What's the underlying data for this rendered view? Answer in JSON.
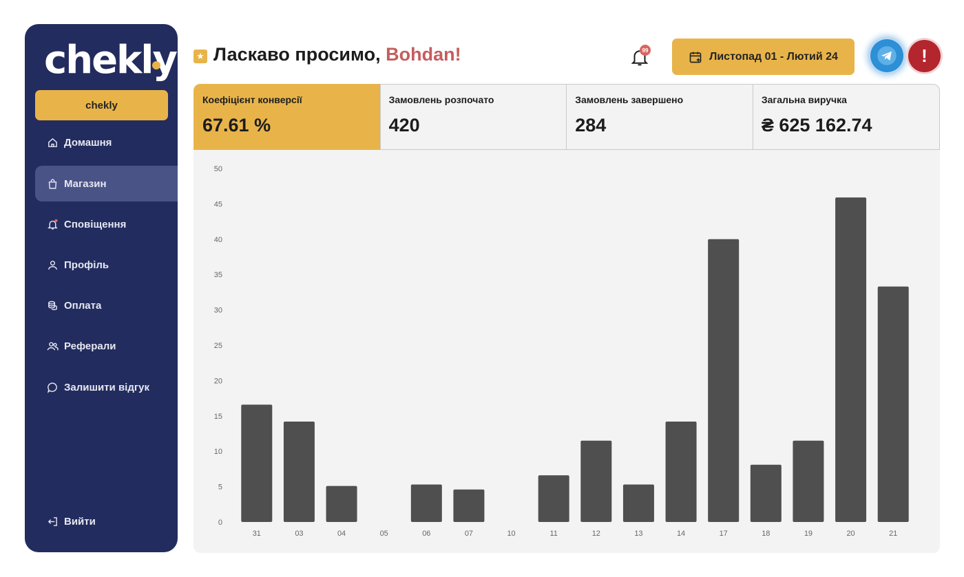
{
  "brand": {
    "logo": "chekly",
    "button_label": "chekly"
  },
  "sidebar": {
    "items": [
      {
        "label": "Домашня",
        "icon": "home-icon",
        "active": false
      },
      {
        "label": "Магазин",
        "icon": "shopping-bag-icon",
        "active": true
      },
      {
        "label": "Сповіщення",
        "icon": "bell-icon",
        "active": false
      },
      {
        "label": "Профіль",
        "icon": "user-icon",
        "active": false
      },
      {
        "label": "Оплата",
        "icon": "coins-icon",
        "active": false
      },
      {
        "label": "Реферали",
        "icon": "users-icon",
        "active": false
      },
      {
        "label": "Залишити відгук",
        "icon": "chat-bubble-icon",
        "active": false
      }
    ],
    "logout": {
      "label": "Вийти",
      "icon": "logout-icon"
    }
  },
  "header": {
    "greeting": "Ласкаво просимо,",
    "user_name": "Bohdan!",
    "notifications_count": "99",
    "date_range": "Листопад 01 - Лютий 24"
  },
  "stats": [
    {
      "label": "Коефіцієнт конверсії",
      "value": "67.61 %"
    },
    {
      "label": "Замовлень розпочато",
      "value": "420"
    },
    {
      "label": "Замовлень завершено",
      "value": "284"
    },
    {
      "label": "Загальна виручка",
      "value": "₴ 625 162.74"
    }
  ],
  "colors": {
    "sidebar": "#232c5e",
    "accent": "#e8b44a",
    "bar": "#4f4f4f",
    "user_name": "#c45e5e"
  },
  "chart_data": {
    "type": "bar",
    "categories": [
      "31",
      "03",
      "04",
      "05",
      "06",
      "07",
      "10",
      "11",
      "12",
      "13",
      "14",
      "17",
      "18",
      "19",
      "20",
      "21"
    ],
    "values": [
      16.6,
      14.2,
      5.1,
      0,
      5.3,
      4.6,
      0,
      6.6,
      11.5,
      5.3,
      14.2,
      40,
      8.1,
      11.5,
      45.9,
      33.3
    ],
    "ylim": [
      0,
      50
    ],
    "yticks": [
      0,
      5,
      10,
      15,
      20,
      25,
      30,
      35,
      40,
      45,
      50
    ],
    "grid": false
  }
}
